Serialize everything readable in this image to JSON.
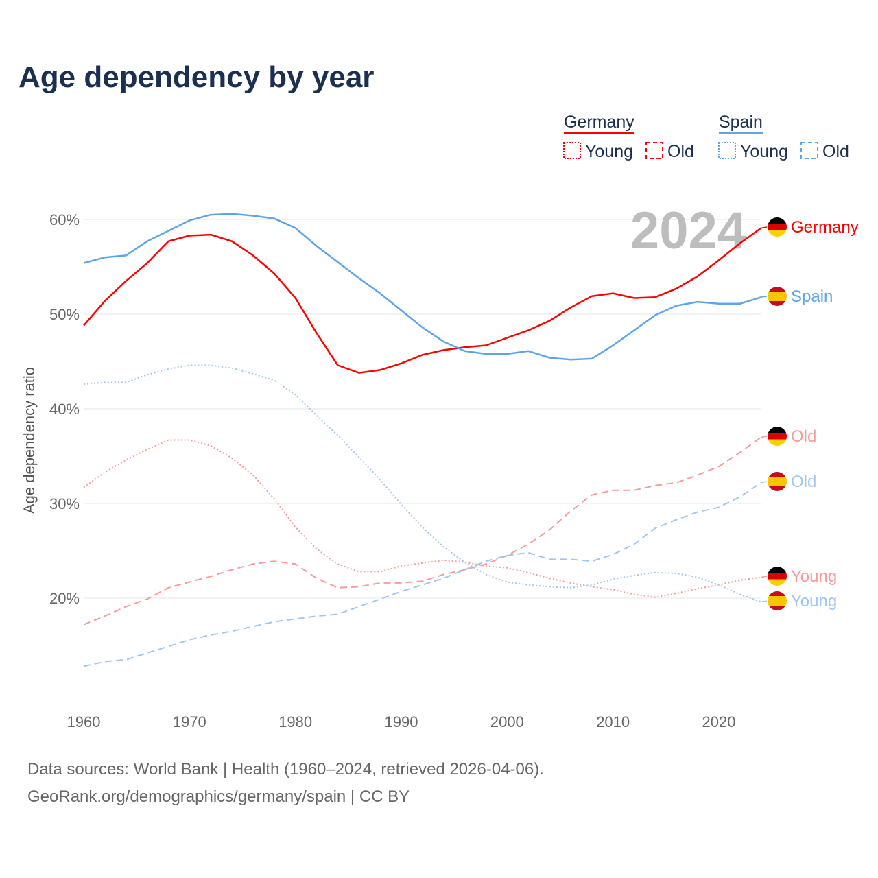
{
  "title": "Age dependency by year",
  "year_watermark": "2024",
  "legend": {
    "groups": [
      {
        "name": "Germany",
        "color": "#ff0000",
        "young": "Young",
        "old": "Old"
      },
      {
        "name": "Spain",
        "color": "#5ea4e8",
        "young": "Young",
        "old": "Old"
      }
    ]
  },
  "footer": {
    "line1": "Data sources: World Bank | Health (1960–2024, retrieved 2026-04-06).",
    "line2": "GeoRank.org/demographics/germany/spain | CC BY"
  },
  "chart_data": {
    "type": "line",
    "title": "Age dependency by year",
    "xlabel": "",
    "ylabel": "Age dependency ratio",
    "xlim": [
      1960,
      2024
    ],
    "ylim": [
      10,
      62
    ],
    "xticks": [
      1960,
      1970,
      1980,
      1990,
      2000,
      2010,
      2020
    ],
    "xtick_labels": [
      "1960",
      "1970",
      "1980",
      "1990",
      "2000",
      "2010",
      "2020"
    ],
    "yticks": [
      20,
      30,
      40,
      50,
      60
    ],
    "ytick_labels": [
      "20%",
      "30%",
      "40%",
      "50%",
      "60%"
    ],
    "grid": true,
    "legend_placement": "top-right",
    "x": [
      1960,
      1962,
      1964,
      1966,
      1968,
      1970,
      1972,
      1974,
      1976,
      1978,
      1980,
      1982,
      1984,
      1986,
      1988,
      1990,
      1992,
      1994,
      1996,
      1998,
      2000,
      2002,
      2004,
      2006,
      2008,
      2010,
      2012,
      2014,
      2016,
      2018,
      2020,
      2022,
      2024
    ],
    "series": [
      {
        "name": "Germany",
        "label": "Germany",
        "country": "de",
        "style": "solid",
        "color": "#ff0000",
        "values": [
          48.8,
          51.4,
          53.5,
          55.4,
          57.7,
          58.3,
          58.4,
          57.7,
          56.2,
          54.3,
          51.7,
          48.0,
          44.6,
          43.8,
          44.1,
          44.8,
          45.7,
          46.2,
          46.5,
          46.7,
          47.5,
          48.3,
          49.3,
          50.7,
          51.9,
          52.2,
          51.7,
          51.8,
          52.7,
          54.0,
          55.7,
          57.5,
          59.1
        ]
      },
      {
        "name": "Spain",
        "label": "Spain",
        "country": "es",
        "style": "solid",
        "color": "#5ea4e8",
        "values": [
          55.4,
          56.0,
          56.2,
          57.7,
          58.8,
          59.9,
          60.5,
          60.6,
          60.4,
          60.1,
          59.1,
          57.2,
          55.5,
          53.8,
          52.2,
          50.4,
          48.6,
          47.1,
          46.1,
          45.8,
          45.8,
          46.1,
          45.4,
          45.2,
          45.3,
          46.7,
          48.3,
          49.9,
          50.9,
          51.3,
          51.1,
          51.1,
          51.8
        ]
      },
      {
        "name": "Germany Old",
        "label": "Old",
        "country": "de",
        "style": "dashed",
        "color": "#f89a9a",
        "values": [
          17.2,
          18.1,
          19.1,
          19.9,
          21.1,
          21.7,
          22.3,
          23.0,
          23.6,
          23.9,
          23.6,
          22.1,
          21.1,
          21.2,
          21.6,
          21.6,
          21.8,
          22.5,
          23.0,
          23.6,
          24.5,
          25.7,
          27.2,
          29.2,
          30.9,
          31.4,
          31.4,
          31.9,
          32.2,
          33.0,
          33.9,
          35.4,
          37.0
        ]
      },
      {
        "name": "Spain Old",
        "label": "Old",
        "country": "es",
        "style": "dashed",
        "color": "#9fc6f0",
        "values": [
          12.8,
          13.3,
          13.5,
          14.2,
          14.9,
          15.6,
          16.1,
          16.5,
          17.0,
          17.5,
          17.8,
          18.1,
          18.3,
          19.1,
          19.9,
          20.7,
          21.4,
          22.1,
          23.0,
          23.9,
          24.5,
          24.8,
          24.1,
          24.1,
          23.9,
          24.6,
          25.7,
          27.4,
          28.3,
          29.1,
          29.6,
          30.7,
          32.2
        ]
      },
      {
        "name": "Germany Young",
        "label": "Young",
        "country": "de",
        "style": "dotted",
        "color": "#f89a9a",
        "values": [
          31.7,
          33.3,
          34.6,
          35.7,
          36.7,
          36.7,
          36.1,
          34.8,
          33.0,
          30.5,
          27.5,
          25.2,
          23.6,
          22.8,
          22.8,
          23.4,
          23.7,
          24.0,
          23.8,
          23.4,
          23.2,
          22.7,
          22.1,
          21.6,
          21.2,
          20.9,
          20.4,
          20.1,
          20.5,
          21.0,
          21.4,
          21.9,
          22.2
        ]
      },
      {
        "name": "Spain Young",
        "label": "Young",
        "country": "es",
        "style": "dotted",
        "color": "#9fc6f0",
        "values": [
          42.6,
          42.8,
          42.8,
          43.6,
          44.2,
          44.6,
          44.6,
          44.3,
          43.7,
          43.0,
          41.5,
          39.3,
          37.2,
          34.9,
          32.5,
          29.9,
          27.5,
          25.4,
          23.8,
          22.5,
          21.7,
          21.4,
          21.2,
          21.1,
          21.4,
          22.0,
          22.4,
          22.7,
          22.6,
          22.2,
          21.4,
          20.4,
          19.6
        ]
      }
    ]
  }
}
